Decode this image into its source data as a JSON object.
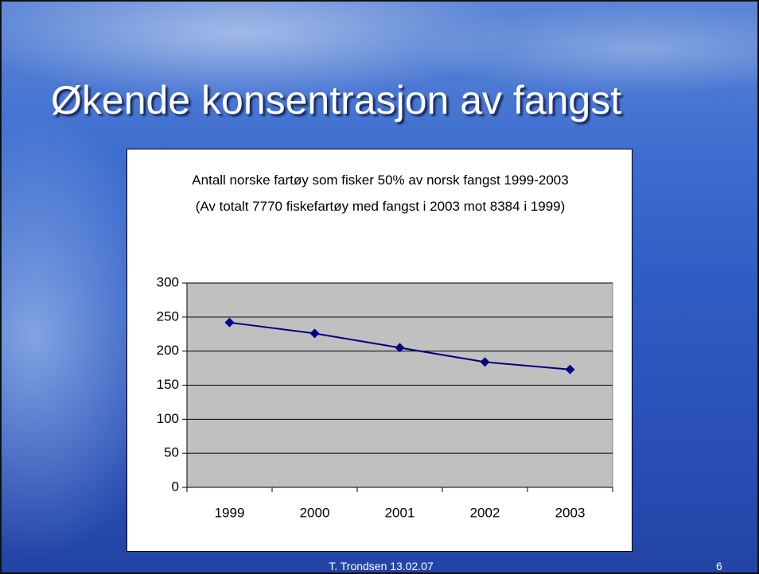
{
  "slide": {
    "title": "Økende konsentrasjon av fangst",
    "footer": "T. Trondsen  13.02.07",
    "page_number": 6
  },
  "chart_data": {
    "type": "line",
    "title": "Antall norske fartøy som fisker 50% av norsk fangst 1999-2003 (Av totalt 7770 fiskefartøy med fangst i 2003 mot 8384 i 1999)",
    "categories": [
      "1999",
      "2000",
      "2001",
      "2002",
      "2003"
    ],
    "values": [
      242,
      226,
      205,
      184,
      173
    ],
    "color": "#000080",
    "ylim": [
      0,
      300
    ],
    "yticks": [
      0,
      50,
      100,
      150,
      200,
      250,
      300
    ],
    "grid": true
  }
}
